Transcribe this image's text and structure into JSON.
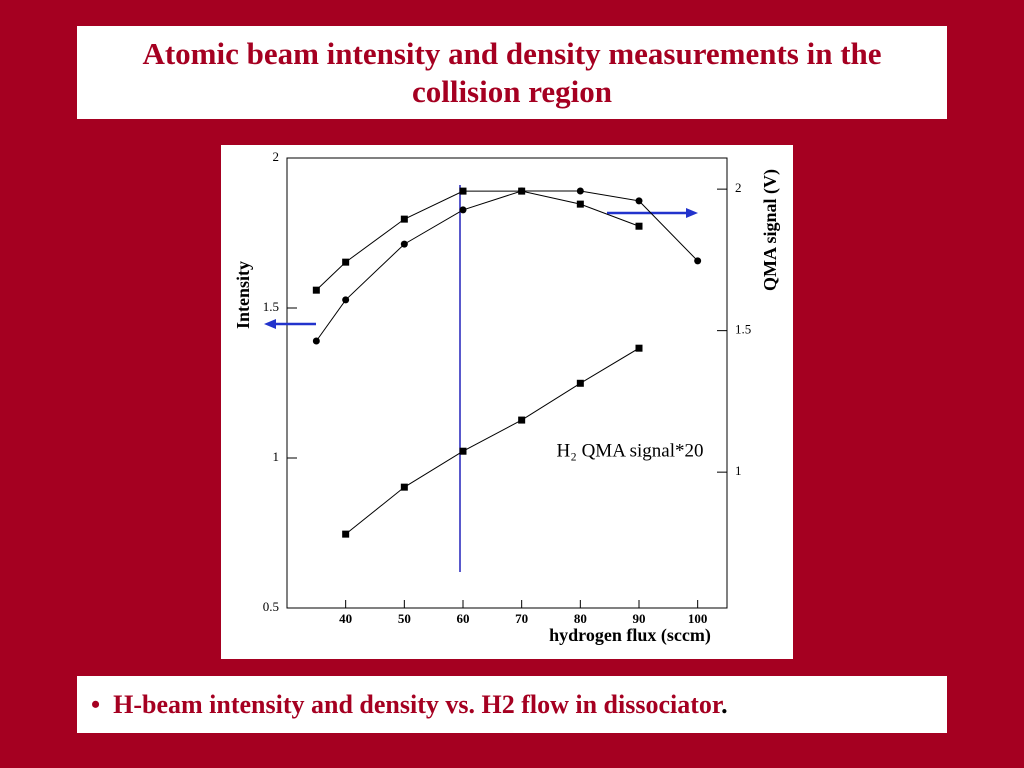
{
  "chart_data": {
    "type": "line",
    "title": "Atomic beam intensity and density measurements in the collision region",
    "x_label": "hydrogen flux (sccm)",
    "y_label": "Intensity",
    "y2_label": "QMA signal (V)",
    "annotation": "H₂ QMA signal*20",
    "caption": "H-beam intensity and density vs. H2 flow in dissociator",
    "caption_end": ".",
    "xlim": [
      30,
      105
    ],
    "xticks": [
      40,
      50,
      60,
      70,
      80,
      90,
      100
    ],
    "ylim": [
      0.5,
      2
    ],
    "yticks": [
      0.5,
      1,
      1.5,
      2
    ],
    "y2lim": [
      0.52,
      2.11
    ],
    "y2ticks": [
      1,
      1.5,
      2
    ],
    "series": [
      {
        "marker": "circle",
        "color": "#000000",
        "x": [
          35,
          40,
          50,
          60,
          70,
          80,
          90,
          100
        ],
        "values": [
          1.39,
          1.527,
          1.713,
          1.827,
          1.89,
          1.89,
          1.857,
          1.657
        ]
      },
      {
        "marker": "square",
        "color": "#000000",
        "axis": "y2",
        "x": [
          35,
          40,
          50,
          60,
          70,
          80,
          90
        ],
        "values": [
          1.643,
          1.742,
          1.894,
          1.993,
          1.993,
          1.947,
          1.869
        ]
      },
      {
        "marker": "square",
        "color": "#000000",
        "axis": "y2",
        "x": [
          40,
          50,
          60,
          70,
          80,
          90
        ],
        "values": [
          0.781,
          0.947,
          1.074,
          1.184,
          1.314,
          1.438
        ]
      }
    ]
  }
}
